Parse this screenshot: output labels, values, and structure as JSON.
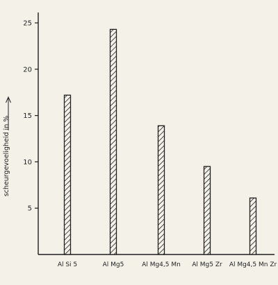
{
  "chart_data": {
    "type": "bar",
    "title": "",
    "xlabel": "",
    "ylabel": "scheurgevoeligheid  in  %",
    "categories": [
      "Al Si 5",
      "Al Mg5",
      "Al Mg4,5 Mn",
      "Al Mg5 Zr",
      "Al Mg4,5 Mn Zr"
    ],
    "values": [
      17.2,
      24.3,
      13.9,
      9.5,
      6.1
    ],
    "ylim": [
      0,
      26
    ],
    "yticks": [
      5,
      10,
      15,
      20,
      25
    ],
    "grid": false,
    "bar_fill": "hatched"
  },
  "colors": {
    "ink": "#1e1e1e",
    "paper": "#f4f1e9"
  }
}
